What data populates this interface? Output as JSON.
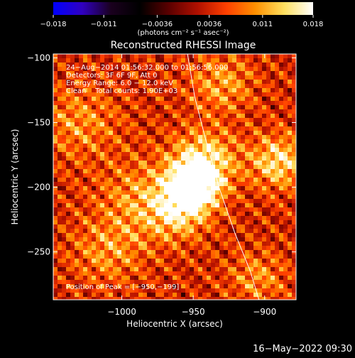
{
  "colorbar": {
    "tick_labels": [
      "−0.018",
      "−0.011",
      "−0.0036",
      "0.0036",
      "0.011",
      "0.018"
    ],
    "tick_values": [
      -0.018,
      -0.011,
      -0.0036,
      0.0036,
      0.011,
      0.018
    ],
    "range": [
      -0.018,
      0.018
    ],
    "units": "(photons cm⁻² s⁻¹ asec⁻²)",
    "colormap": [
      "#0000ff",
      "#3000c0",
      "#1a001e",
      "#000000",
      "#5a0000",
      "#b01000",
      "#ff4000",
      "#ff9000",
      "#ffe060",
      "#ffffff"
    ]
  },
  "chart_data": {
    "type": "heatmap",
    "title": "Reconstructed RHESSI Image",
    "xlabel": "Heliocentric X (arcsec)",
    "ylabel": "Heliocentric Y (arcsec)",
    "xlim": [
      -1048,
      -878
    ],
    "ylim": [
      -287,
      -97
    ],
    "x_ticks": [
      -1000,
      -950,
      -900
    ],
    "x_tick_labels": [
      "−1000",
      "−950",
      "−900"
    ],
    "y_ticks": [
      -250,
      -200,
      -150,
      -100
    ],
    "y_tick_labels": [
      "−250",
      "−200",
      "−150",
      "−100"
    ],
    "annotations": [
      "24−Aug−2014 01:56:32.000 to 01:56:56.000",
      "Detectors: 3F 6F 9F, Att 0",
      "Energy Range: 6.0 − 12.0 keV",
      "Clean    Total counts: 1.90E+03"
    ],
    "peak_label": "Position of Peak = [−950,−199]",
    "peak": [
      -950,
      -199
    ],
    "limb_curve": [
      [
        -954,
        -97
      ],
      [
        -949,
        -130
      ],
      [
        -942,
        -160
      ],
      [
        -932,
        -200
      ],
      [
        -921,
        -235
      ],
      [
        -910,
        -265
      ],
      [
        -904,
        -287
      ]
    ]
  },
  "footer": {
    "timestamp": "16−May−2022 09:30"
  }
}
